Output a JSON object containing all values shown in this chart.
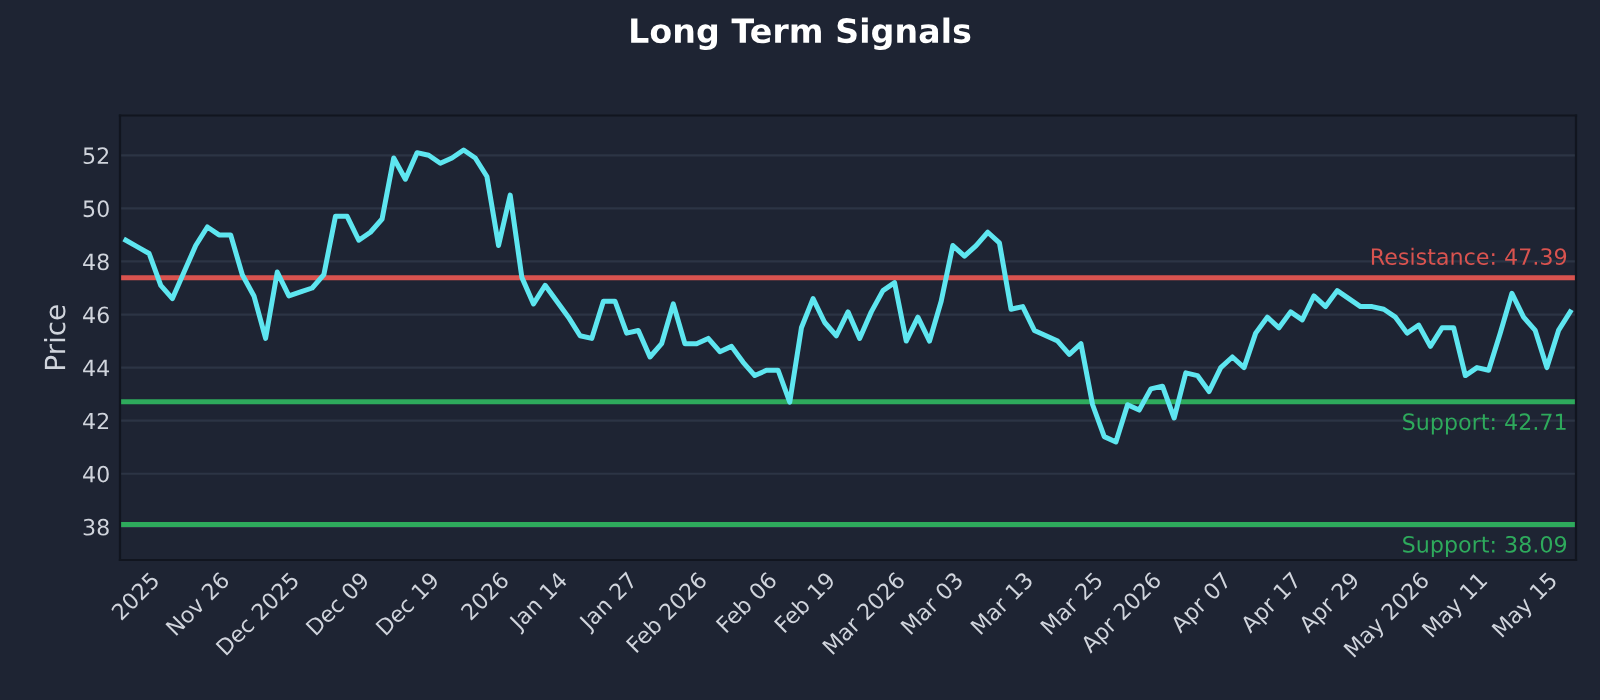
{
  "chart_data": {
    "type": "line",
    "title": "Long Term Signals",
    "ylabel": "Price",
    "categories": [
      null,
      null,
      "2025",
      null,
      null,
      null,
      null,
      null,
      "Nov 26",
      null,
      null,
      null,
      null,
      null,
      "Dec 2025",
      null,
      null,
      null,
      null,
      null,
      "Dec 09",
      null,
      null,
      null,
      null,
      null,
      "Dec 19",
      null,
      null,
      null,
      null,
      null,
      "2026",
      null,
      null,
      null,
      null,
      "Jan 14",
      null,
      null,
      null,
      null,
      null,
      "Jan 27",
      null,
      null,
      null,
      null,
      null,
      "Feb 2026",
      null,
      null,
      null,
      null,
      null,
      "Feb 06",
      null,
      null,
      null,
      null,
      "Feb 19",
      null,
      null,
      null,
      null,
      null,
      "Mar 2026",
      null,
      null,
      null,
      null,
      "Mar 03",
      null,
      null,
      null,
      null,
      null,
      "Mar 13",
      null,
      null,
      null,
      null,
      null,
      "Mar 25",
      null,
      null,
      null,
      null,
      "Apr 2026",
      null,
      null,
      null,
      null,
      null,
      "Apr 07",
      null,
      null,
      null,
      null,
      null,
      "Apr 17",
      null,
      null,
      null,
      null,
      "Apr 29",
      null,
      null,
      null,
      null,
      null,
      "May 2026",
      null,
      null,
      null,
      null,
      "May 11",
      null,
      null,
      null,
      null,
      null,
      "May 15",
      null,
      null
    ],
    "series": [
      {
        "color": "#5ee6f0",
        "values": [
          48.8,
          48.55,
          48.3,
          47.1,
          46.6,
          47.6,
          48.6,
          49.3,
          49.0,
          49.0,
          47.5,
          46.7,
          45.1,
          47.6,
          46.7,
          46.85,
          47.0,
          47.5,
          49.7,
          49.7,
          48.8,
          49.1,
          49.6,
          51.9,
          51.1,
          52.1,
          52.0,
          51.7,
          51.9,
          52.2,
          51.9,
          51.2,
          48.6,
          50.5,
          47.4,
          46.4,
          47.1,
          46.5,
          45.9,
          45.2,
          45.1,
          46.5,
          46.5,
          45.3,
          45.4,
          44.4,
          44.9,
          46.4,
          44.9,
          44.9,
          45.1,
          44.6,
          44.8,
          44.2,
          43.7,
          43.9,
          43.9,
          42.7,
          45.5,
          46.6,
          45.7,
          45.2,
          46.1,
          45.1,
          46.1,
          46.9,
          47.2,
          45.0,
          45.9,
          45.0,
          46.5,
          48.6,
          48.2,
          48.6,
          49.1,
          48.7,
          46.2,
          46.3,
          45.4,
          45.2,
          45.0,
          44.5,
          44.9,
          42.6,
          41.4,
          41.2,
          42.6,
          42.4,
          43.2,
          43.3,
          42.1,
          43.8,
          43.7,
          43.1,
          44.0,
          44.4,
          44.0,
          45.3,
          45.9,
          45.5,
          46.1,
          45.8,
          46.7,
          46.3,
          46.9,
          46.6,
          46.3,
          46.3,
          46.2,
          45.9,
          45.3,
          45.6,
          44.8,
          45.5,
          45.5,
          43.7,
          44.0,
          43.9,
          45.3,
          46.8,
          45.9,
          45.4,
          44.0,
          45.4,
          46.1
        ]
      }
    ],
    "ylim": [
      36.75,
      53.5
    ],
    "yticks": [
      38,
      40,
      42,
      44,
      46,
      48,
      50,
      52
    ],
    "grid": "y",
    "marker": "none",
    "line_style": "solid",
    "ref_lines": [
      {
        "axis": "y",
        "value": 47.39,
        "label": "Resistance: 47.39",
        "color": "#d9534f"
      },
      {
        "axis": "y",
        "value": 42.71,
        "label": "Support: 42.71",
        "color": "#2eaa5c"
      },
      {
        "axis": "y",
        "value": 38.09,
        "label": "Support: 38.09",
        "color": "#2eaa5c"
      }
    ]
  }
}
